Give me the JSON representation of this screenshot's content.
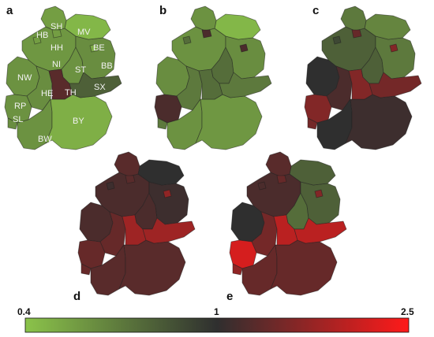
{
  "panels": [
    {
      "letter": "a",
      "labels": [
        "SH",
        "HB",
        "HH",
        "MV",
        "BE",
        "NI",
        "ST",
        "BB",
        "NW",
        "HE",
        "TH",
        "SX",
        "RP",
        "SL",
        "BY",
        "BW"
      ],
      "values": {
        "SH": 0.55,
        "HB": 0.55,
        "HH": 0.55,
        "MV": 0.45,
        "BE": 0.5,
        "NI": 0.58,
        "ST": 0.6,
        "BB": 0.62,
        "NW": 0.6,
        "HE": 0.62,
        "TH": 1.3,
        "SX": 0.8,
        "RP": 0.6,
        "SL": 0.62,
        "BY": 0.48,
        "BW": 0.6
      }
    },
    {
      "letter": "b",
      "values": {
        "SH": 0.6,
        "HB": 0.75,
        "HH": 1.2,
        "MV": 0.45,
        "BE": 1.2,
        "NI": 0.6,
        "ST": 0.75,
        "BB": 0.62,
        "NW": 0.62,
        "HE": 0.7,
        "TH": 0.75,
        "SX": 0.7,
        "RP": 1.2,
        "SL": 0.7,
        "BY": 0.58,
        "BW": 0.6
      }
    },
    {
      "letter": "c",
      "values": {
        "SH": 0.7,
        "HB": 0.9,
        "HH": 1.4,
        "MV": 0.65,
        "BE": 1.6,
        "NI": 0.8,
        "ST": 0.8,
        "BB": 0.7,
        "NW": 1.0,
        "HE": 1.2,
        "TH": 1.6,
        "SX": 1.5,
        "RP": 1.6,
        "SL": 1.5,
        "BY": 1.1,
        "BW": 1.0
      }
    },
    {
      "letter": "d",
      "values": {
        "SH": 1.3,
        "HB": 1.1,
        "HH": 1.3,
        "MV": 1.0,
        "BE": 1.7,
        "NI": 1.2,
        "ST": 1.2,
        "BB": 1.1,
        "NW": 1.2,
        "HE": 1.4,
        "TH": 1.8,
        "SX": 1.8,
        "RP": 1.4,
        "SL": 1.4,
        "BY": 1.3,
        "BW": 1.3
      }
    },
    {
      "letter": "e",
      "values": {
        "SH": 1.3,
        "HB": 1.2,
        "HH": 1.4,
        "MV": 0.8,
        "BE": 1.6,
        "NI": 1.2,
        "ST": 0.75,
        "BB": 0.8,
        "NW": 1.0,
        "HE": 1.5,
        "TH": 2.0,
        "SX": 2.0,
        "RP": 2.2,
        "SL": 1.7,
        "BY": 1.4,
        "BW": 1.4
      }
    }
  ],
  "colorbar": {
    "min_label": "0.4",
    "mid_label": "1",
    "max_label": "2.5",
    "min": 0.4,
    "mid": 1.0,
    "max": 2.5,
    "low_color": "#8bc34a",
    "mid_color": "#2f2f2f",
    "high_color": "#ff1a1a"
  }
}
